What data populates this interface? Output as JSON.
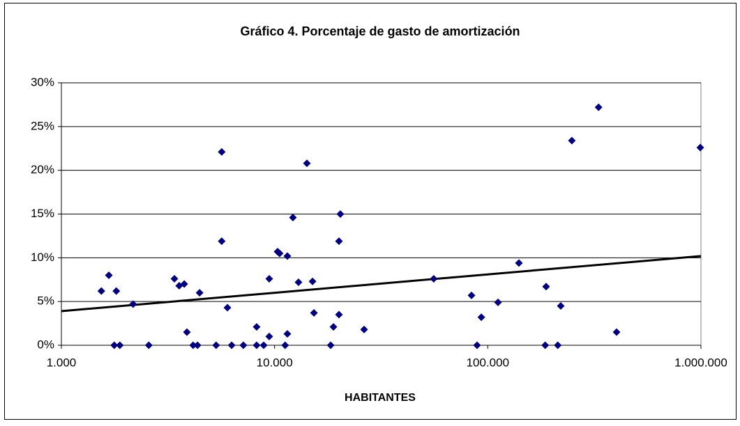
{
  "chart_data": {
    "type": "scatter",
    "title": "Gráfico 4. Porcentaje de gasto de amortización",
    "x_label": "HABITANTES",
    "x_scale": "log",
    "grid": true,
    "color": "#000080",
    "xlim": [
      1000,
      1000000
    ],
    "xticks": [
      {
        "value": 1000,
        "label": "1.000"
      },
      {
        "value": 10000,
        "label": "10.000"
      },
      {
        "value": 100000,
        "label": "100.000"
      },
      {
        "value": 1000000,
        "label": "1.000.000"
      }
    ],
    "ylim": [
      0,
      30
    ],
    "yticks": [
      {
        "value": 0,
        "label": "0%"
      },
      {
        "value": 5,
        "label": "5%"
      },
      {
        "value": 10,
        "label": "10%"
      },
      {
        "value": 15,
        "label": "15%"
      },
      {
        "value": 20,
        "label": "20%"
      },
      {
        "value": 25,
        "label": "25%"
      },
      {
        "value": 30,
        "label": "30%"
      }
    ],
    "x": [
      1540,
      1670,
      1810,
      1770,
      1880,
      2170,
      2570,
      3390,
      3570,
      3770,
      3880,
      4450,
      4150,
      4350,
      5650,
      5650,
      5320,
      6010,
      6290,
      7140,
      8240,
      8240,
      8890,
      9440,
      9440,
      10330,
      10560,
      11480,
      11210,
      11480,
      12190,
      12950,
      14180,
      15070,
      15300,
      18330,
      18890,
      20050,
      20350,
      20050,
      26300,
      55800,
      83900,
      89100,
      93300,
      111700,
      140000,
      187800,
      186000,
      213000,
      220000,
      248000,
      331000,
      402000,
      993000
    ],
    "values": [
      6.2,
      8.0,
      6.2,
      0,
      0,
      4.7,
      0,
      7.6,
      6.8,
      7.0,
      1.5,
      6.0,
      0,
      0,
      22.1,
      11.9,
      0,
      4.3,
      0,
      0,
      2.1,
      0,
      0,
      7.6,
      1.0,
      10.7,
      10.5,
      10.2,
      0,
      1.3,
      14.6,
      7.2,
      20.8,
      7.3,
      3.7,
      0,
      2.1,
      11.9,
      15.0,
      3.5,
      1.8,
      7.6,
      5.7,
      0,
      3.2,
      4.9,
      9.4,
      6.7,
      0,
      0,
      4.5,
      23.4,
      27.2,
      1.5,
      22.6
    ],
    "trendline": {
      "x": [
        1000,
        1000000
      ],
      "values": [
        3.9,
        10.2
      ],
      "color": "#000000"
    }
  }
}
